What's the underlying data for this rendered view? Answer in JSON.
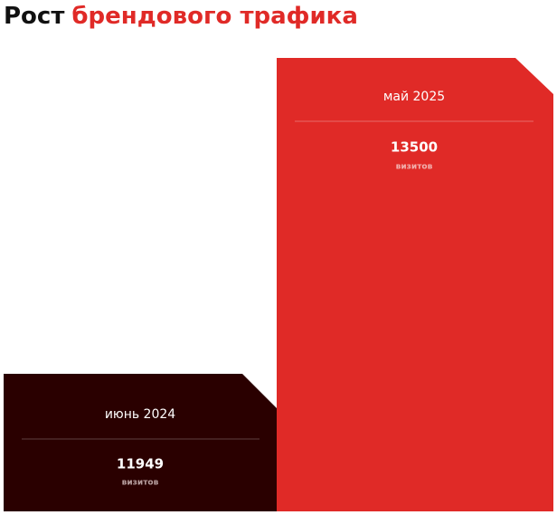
{
  "title": {
    "lead": "Рост",
    "highlight": "брендового трафика"
  },
  "cards": [
    {
      "period": "июнь 2024",
      "value": "11949",
      "unit": "визитов"
    },
    {
      "period": "май 2025",
      "value": "13500",
      "unit": "визитов"
    }
  ]
}
